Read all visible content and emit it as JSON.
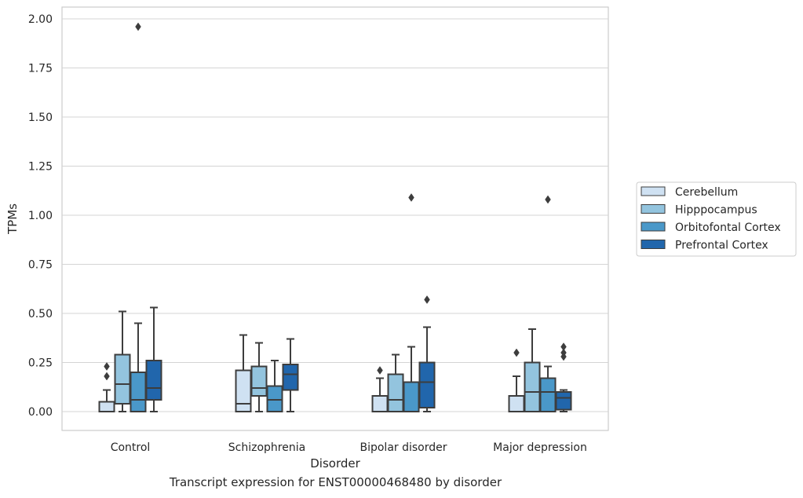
{
  "caption": "Transcript expression for ENST00000468480 by disorder",
  "chart_data": {
    "type": "box",
    "xlabel": "Disorder",
    "ylabel": "TPMs",
    "ylim": [
      -0.09,
      2.06
    ],
    "yticks": [
      "0.00",
      "0.25",
      "0.50",
      "0.75",
      "1.00",
      "1.25",
      "1.50",
      "1.75",
      "2.00"
    ],
    "grid": true,
    "legend_position": "right",
    "categories": [
      "Control",
      "Schizophrenia",
      "Bipolar disorder",
      "Major depression"
    ],
    "series": [
      {
        "name": "Cerebellum",
        "color": "#cfe1f2",
        "boxes": [
          {
            "whislo": 0.0,
            "q1": 0.0,
            "med": 0.0,
            "q3": 0.05,
            "whishi": 0.11,
            "fliers": [
              0.18,
              0.23
            ]
          },
          {
            "whislo": 0.0,
            "q1": 0.0,
            "med": 0.04,
            "q3": 0.21,
            "whishi": 0.39,
            "fliers": []
          },
          {
            "whislo": 0.0,
            "q1": 0.0,
            "med": 0.0,
            "q3": 0.08,
            "whishi": 0.17,
            "fliers": [
              0.21
            ]
          },
          {
            "whislo": 0.0,
            "q1": 0.0,
            "med": 0.0,
            "q3": 0.08,
            "whishi": 0.18,
            "fliers": [
              0.3
            ]
          }
        ]
      },
      {
        "name": "Hipppocampus",
        "color": "#93c4de",
        "boxes": [
          {
            "whislo": 0.0,
            "q1": 0.04,
            "med": 0.14,
            "q3": 0.29,
            "whishi": 0.51,
            "fliers": []
          },
          {
            "whislo": 0.0,
            "q1": 0.08,
            "med": 0.12,
            "q3": 0.23,
            "whishi": 0.35,
            "fliers": []
          },
          {
            "whislo": 0.0,
            "q1": 0.0,
            "med": 0.06,
            "q3": 0.19,
            "whishi": 0.29,
            "fliers": []
          },
          {
            "whislo": 0.0,
            "q1": 0.0,
            "med": 0.1,
            "q3": 0.25,
            "whishi": 0.42,
            "fliers": []
          }
        ]
      },
      {
        "name": "Orbitofontal Cortex",
        "color": "#4a98c9",
        "boxes": [
          {
            "whislo": 0.0,
            "q1": 0.0,
            "med": 0.06,
            "q3": 0.2,
            "whishi": 0.45,
            "fliers": [
              1.96
            ]
          },
          {
            "whislo": 0.0,
            "q1": 0.0,
            "med": 0.06,
            "q3": 0.13,
            "whishi": 0.26,
            "fliers": []
          },
          {
            "whislo": 0.0,
            "q1": 0.0,
            "med": 0.0,
            "q3": 0.15,
            "whishi": 0.33,
            "fliers": [
              1.09
            ]
          },
          {
            "whislo": 0.0,
            "q1": 0.0,
            "med": 0.1,
            "q3": 0.17,
            "whishi": 0.23,
            "fliers": [
              1.08
            ]
          }
        ]
      },
      {
        "name": "Prefrontal Cortex",
        "color": "#2166ac",
        "boxes": [
          {
            "whislo": 0.0,
            "q1": 0.06,
            "med": 0.12,
            "q3": 0.26,
            "whishi": 0.53,
            "fliers": []
          },
          {
            "whislo": 0.0,
            "q1": 0.11,
            "med": 0.19,
            "q3": 0.24,
            "whishi": 0.37,
            "fliers": []
          },
          {
            "whislo": 0.0,
            "q1": 0.02,
            "med": 0.15,
            "q3": 0.25,
            "whishi": 0.43,
            "fliers": [
              0.57
            ]
          },
          {
            "whislo": 0.0,
            "q1": 0.01,
            "med": 0.07,
            "q3": 0.1,
            "whishi": 0.11,
            "fliers": [
              0.28,
              0.3,
              0.33
            ]
          }
        ]
      }
    ]
  }
}
